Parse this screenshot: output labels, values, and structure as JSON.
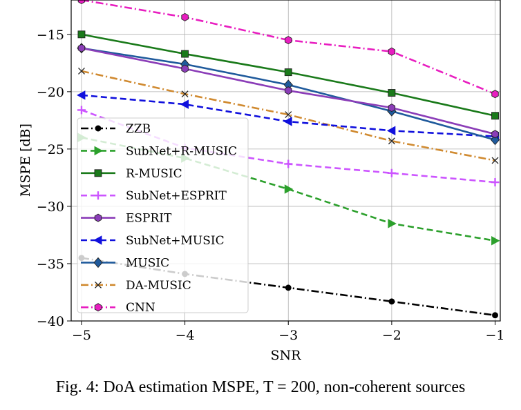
{
  "caption": "Fig. 4: DoA estimation MSPE, T = 200, non-coherent sources",
  "chart_data": {
    "type": "line",
    "xlabel": "SNR",
    "ylabel": "MSPE [dB]",
    "xlim": [
      -5.1,
      -0.95
    ],
    "ylim": [
      -40,
      -12
    ],
    "xticks": [
      -5,
      -4,
      -3,
      -2,
      -1
    ],
    "xtick_labels": [
      "−5",
      "−4",
      "−3",
      "−2",
      "−1"
    ],
    "yticks": [
      -40,
      -35,
      -30,
      -25,
      -20,
      -15
    ],
    "ytick_labels": [
      "−40",
      "−35",
      "−30",
      "−25",
      "−20",
      "−15"
    ],
    "grid": true,
    "legend_position": "lower-left",
    "x": [
      -5,
      -4,
      -3,
      -2,
      -1
    ],
    "series": [
      {
        "name": "ZZB",
        "color": "#000000",
        "dash": "dashdot",
        "marker": "circle",
        "values": [
          -34.5,
          -35.9,
          -37.1,
          -38.3,
          -39.5
        ]
      },
      {
        "name": "SubNet+R-MUSIC",
        "color": "#2ca02c",
        "dash": "dashed",
        "marker": "triangle-right",
        "values": [
          -24.0,
          -25.8,
          -28.5,
          -31.5,
          -33.0
        ]
      },
      {
        "name": "R-MUSIC",
        "color": "#1a7a1a",
        "dash": "solid",
        "marker": "square",
        "values": [
          -15.0,
          -16.7,
          -18.3,
          -20.1,
          -22.1
        ]
      },
      {
        "name": "SubNet+ESPRIT",
        "color": "#cc55ff",
        "dash": "dashed",
        "marker": "plus",
        "values": [
          -21.6,
          -24.9,
          -26.3,
          -27.1,
          -27.9
        ]
      },
      {
        "name": "ESPRIT",
        "color": "#8b3db8",
        "dash": "solid",
        "marker": "hexagon",
        "values": [
          -16.2,
          -18.0,
          -19.9,
          -21.4,
          -23.7
        ]
      },
      {
        "name": "SubNet+MUSIC",
        "color": "#1010dd",
        "dash": "dashed",
        "marker": "triangle-left",
        "values": [
          -20.3,
          -21.1,
          -22.6,
          -23.4,
          -23.9
        ]
      },
      {
        "name": "MUSIC",
        "color": "#1f5a9c",
        "dash": "solid",
        "marker": "diamond",
        "values": [
          -16.2,
          -17.6,
          -19.4,
          -21.7,
          -24.2
        ]
      },
      {
        "name": "DA-MUSIC",
        "color": "#d08a30",
        "dash": "dashdot",
        "marker": "x",
        "values": [
          -18.2,
          -20.2,
          -22.0,
          -24.3,
          -26.0
        ]
      },
      {
        "name": "CNN",
        "color": "#e81ec0",
        "dash": "dashdot",
        "marker": "hexagon",
        "values": [
          -12.0,
          -13.5,
          -15.5,
          -16.5,
          -20.2
        ]
      }
    ]
  }
}
